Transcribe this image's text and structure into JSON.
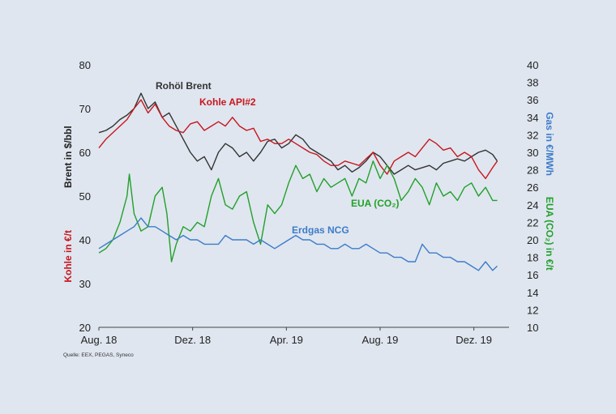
{
  "chart_data": {
    "type": "line",
    "source": "Quelle: EEX, PEGAS, Syneco",
    "x_ticks": [
      {
        "label": "Aug. 18",
        "t": 0
      },
      {
        "label": "Dez. 18",
        "t": 4
      },
      {
        "label": "Apr. 19",
        "t": 8
      },
      {
        "label": "Aug. 19",
        "t": 12
      },
      {
        "label": "Dez. 19",
        "t": 16
      }
    ],
    "xlim": [
      0,
      17.5
    ],
    "left_axis": {
      "ylim": [
        20,
        80
      ],
      "ticks": [
        20,
        30,
        40,
        50,
        60,
        70,
        80
      ],
      "labels": [
        {
          "text": "Brent in $/bbl",
          "color": "#222222"
        },
        {
          "text": "Kohle in €/t",
          "color": "#c8161d"
        }
      ]
    },
    "right_axis": {
      "ylim": [
        10,
        40
      ],
      "ticks": [
        10,
        12,
        14,
        16,
        18,
        20,
        22,
        24,
        26,
        28,
        30,
        32,
        34,
        36,
        38,
        40
      ],
      "labels": [
        {
          "text": "Gas in €/MWh",
          "color": "#3d7cc9"
        },
        {
          "text": "EUA (CO₂) in €/t",
          "color": "#22a02a"
        }
      ]
    },
    "series": [
      {
        "name": "Rohöl Brent",
        "label": "Rohöl Brent",
        "axis": "left",
        "color": "#333333",
        "points": [
          [
            0,
            64.5
          ],
          [
            0.3,
            65
          ],
          [
            0.6,
            66
          ],
          [
            0.9,
            67.5
          ],
          [
            1.2,
            68.5
          ],
          [
            1.5,
            70
          ],
          [
            1.8,
            73.5
          ],
          [
            2.1,
            70
          ],
          [
            2.4,
            71.5
          ],
          [
            2.7,
            68
          ],
          [
            3.0,
            69
          ],
          [
            3.3,
            66
          ],
          [
            3.6,
            63
          ],
          [
            3.9,
            60
          ],
          [
            4.2,
            58
          ],
          [
            4.5,
            59
          ],
          [
            4.8,
            56
          ],
          [
            5.1,
            60
          ],
          [
            5.4,
            62
          ],
          [
            5.7,
            61
          ],
          [
            6.0,
            59
          ],
          [
            6.3,
            60
          ],
          [
            6.6,
            58
          ],
          [
            6.9,
            60
          ],
          [
            7.2,
            62.5
          ],
          [
            7.5,
            63
          ],
          [
            7.8,
            61
          ],
          [
            8.1,
            62
          ],
          [
            8.4,
            64
          ],
          [
            8.7,
            63
          ],
          [
            9.0,
            61
          ],
          [
            9.3,
            60
          ],
          [
            9.6,
            59
          ],
          [
            9.9,
            58
          ],
          [
            10.2,
            56
          ],
          [
            10.5,
            57
          ],
          [
            10.8,
            55.5
          ],
          [
            11.1,
            56.5
          ],
          [
            11.4,
            58
          ],
          [
            11.7,
            60
          ],
          [
            12.0,
            59
          ],
          [
            12.3,
            57
          ],
          [
            12.6,
            55
          ],
          [
            12.9,
            56
          ],
          [
            13.2,
            57
          ],
          [
            13.5,
            56
          ],
          [
            13.8,
            56.5
          ],
          [
            14.1,
            57
          ],
          [
            14.4,
            56
          ],
          [
            14.7,
            57.5
          ],
          [
            15.0,
            58
          ],
          [
            15.3,
            58.5
          ],
          [
            15.6,
            58
          ],
          [
            15.9,
            59
          ],
          [
            16.2,
            60
          ],
          [
            16.5,
            60.5
          ],
          [
            16.8,
            59.5
          ],
          [
            17.0,
            58
          ]
        ]
      },
      {
        "name": "Kohle API#2",
        "label": "Kohle API#2",
        "axis": "left",
        "color": "#c8161d",
        "points": [
          [
            0,
            61
          ],
          [
            0.3,
            63
          ],
          [
            0.6,
            64.5
          ],
          [
            0.9,
            66
          ],
          [
            1.2,
            67.5
          ],
          [
            1.5,
            70
          ],
          [
            1.8,
            72
          ],
          [
            2.1,
            69
          ],
          [
            2.4,
            71
          ],
          [
            2.7,
            68
          ],
          [
            3.0,
            66
          ],
          [
            3.3,
            65
          ],
          [
            3.6,
            64.5
          ],
          [
            3.9,
            66.5
          ],
          [
            4.2,
            67
          ],
          [
            4.5,
            65
          ],
          [
            4.8,
            66
          ],
          [
            5.1,
            67
          ],
          [
            5.4,
            66
          ],
          [
            5.7,
            68
          ],
          [
            6.0,
            66
          ],
          [
            6.3,
            65
          ],
          [
            6.6,
            65.5
          ],
          [
            6.9,
            62.5
          ],
          [
            7.2,
            63
          ],
          [
            7.5,
            62
          ],
          [
            7.8,
            62
          ],
          [
            8.1,
            63
          ],
          [
            8.4,
            62
          ],
          [
            8.7,
            61
          ],
          [
            9.0,
            60
          ],
          [
            9.3,
            59.5
          ],
          [
            9.6,
            58
          ],
          [
            9.9,
            57
          ],
          [
            10.2,
            57
          ],
          [
            10.5,
            58
          ],
          [
            10.8,
            57.5
          ],
          [
            11.1,
            57
          ],
          [
            11.4,
            58.5
          ],
          [
            11.7,
            60
          ],
          [
            12.0,
            57
          ],
          [
            12.3,
            55
          ],
          [
            12.6,
            58
          ],
          [
            12.9,
            59
          ],
          [
            13.2,
            60
          ],
          [
            13.5,
            59
          ],
          [
            13.8,
            61
          ],
          [
            14.1,
            63
          ],
          [
            14.4,
            62
          ],
          [
            14.7,
            60.5
          ],
          [
            15.0,
            61
          ],
          [
            15.3,
            59
          ],
          [
            15.6,
            60
          ],
          [
            15.9,
            59
          ],
          [
            16.2,
            56
          ],
          [
            16.5,
            54
          ],
          [
            16.8,
            56.5
          ],
          [
            17.0,
            58
          ]
        ]
      },
      {
        "name": "EUA (CO₂)",
        "label": "EUA (CO₂)",
        "axis": "right",
        "color": "#22a02a",
        "points": [
          [
            0,
            18.5
          ],
          [
            0.3,
            19
          ],
          [
            0.6,
            20
          ],
          [
            0.9,
            22
          ],
          [
            1.2,
            25
          ],
          [
            1.3,
            27.5
          ],
          [
            1.5,
            23
          ],
          [
            1.8,
            21
          ],
          [
            2.1,
            21.5
          ],
          [
            2.4,
            25
          ],
          [
            2.7,
            26
          ],
          [
            2.9,
            23
          ],
          [
            3.1,
            17.5
          ],
          [
            3.3,
            19.5
          ],
          [
            3.6,
            21.5
          ],
          [
            3.9,
            21
          ],
          [
            4.2,
            22
          ],
          [
            4.5,
            21.5
          ],
          [
            4.8,
            25
          ],
          [
            5.1,
            27
          ],
          [
            5.4,
            24
          ],
          [
            5.7,
            23.5
          ],
          [
            6.0,
            25
          ],
          [
            6.3,
            25.5
          ],
          [
            6.6,
            22
          ],
          [
            6.9,
            19.5
          ],
          [
            7.2,
            24
          ],
          [
            7.5,
            23
          ],
          [
            7.8,
            24
          ],
          [
            8.1,
            26.5
          ],
          [
            8.4,
            28.5
          ],
          [
            8.7,
            27
          ],
          [
            9.0,
            27.5
          ],
          [
            9.3,
            25.5
          ],
          [
            9.6,
            27
          ],
          [
            9.9,
            26
          ],
          [
            10.2,
            26.5
          ],
          [
            10.5,
            27
          ],
          [
            10.8,
            25
          ],
          [
            11.1,
            27
          ],
          [
            11.4,
            26.5
          ],
          [
            11.7,
            29
          ],
          [
            12.0,
            27
          ],
          [
            12.3,
            28.5
          ],
          [
            12.6,
            27
          ],
          [
            12.9,
            24.5
          ],
          [
            13.2,
            25.5
          ],
          [
            13.5,
            27
          ],
          [
            13.8,
            26
          ],
          [
            14.1,
            24
          ],
          [
            14.4,
            26.5
          ],
          [
            14.7,
            25
          ],
          [
            15.0,
            25.5
          ],
          [
            15.3,
            24.5
          ],
          [
            15.6,
            26
          ],
          [
            15.9,
            26.5
          ],
          [
            16.2,
            25
          ],
          [
            16.5,
            26
          ],
          [
            16.8,
            24.5
          ],
          [
            17.0,
            24.5
          ]
        ]
      },
      {
        "name": "Erdgas NCG",
        "label": "Erdgas NCG",
        "axis": "right",
        "color": "#3d7cc9",
        "points": [
          [
            0,
            19
          ],
          [
            0.3,
            19.5
          ],
          [
            0.6,
            20
          ],
          [
            0.9,
            20.5
          ],
          [
            1.2,
            21
          ],
          [
            1.5,
            21.5
          ],
          [
            1.8,
            22.5
          ],
          [
            2.1,
            21.5
          ],
          [
            2.4,
            21.5
          ],
          [
            2.7,
            21
          ],
          [
            3.0,
            20.5
          ],
          [
            3.3,
            20
          ],
          [
            3.6,
            20.5
          ],
          [
            3.9,
            20
          ],
          [
            4.2,
            20
          ],
          [
            4.5,
            19.5
          ],
          [
            4.8,
            19.5
          ],
          [
            5.1,
            19.5
          ],
          [
            5.4,
            20.5
          ],
          [
            5.7,
            20
          ],
          [
            6.0,
            20
          ],
          [
            6.3,
            20
          ],
          [
            6.6,
            19.5
          ],
          [
            6.9,
            20
          ],
          [
            7.2,
            19.5
          ],
          [
            7.5,
            19
          ],
          [
            7.8,
            19.5
          ],
          [
            8.1,
            20
          ],
          [
            8.4,
            20.5
          ],
          [
            8.7,
            20
          ],
          [
            9.0,
            20
          ],
          [
            9.3,
            19.5
          ],
          [
            9.6,
            19.5
          ],
          [
            9.9,
            19
          ],
          [
            10.2,
            19
          ],
          [
            10.5,
            19.5
          ],
          [
            10.8,
            19
          ],
          [
            11.1,
            19
          ],
          [
            11.4,
            19.5
          ],
          [
            11.7,
            19
          ],
          [
            12.0,
            18.5
          ],
          [
            12.3,
            18.5
          ],
          [
            12.6,
            18
          ],
          [
            12.9,
            18
          ],
          [
            13.2,
            17.5
          ],
          [
            13.5,
            17.5
          ],
          [
            13.8,
            19.5
          ],
          [
            14.1,
            18.5
          ],
          [
            14.4,
            18.5
          ],
          [
            14.7,
            18
          ],
          [
            15.0,
            18
          ],
          [
            15.3,
            17.5
          ],
          [
            15.6,
            17.5
          ],
          [
            15.9,
            17
          ],
          [
            16.2,
            16.5
          ],
          [
            16.5,
            17.5
          ],
          [
            16.8,
            16.5
          ],
          [
            17.0,
            17
          ]
        ]
      }
    ]
  }
}
